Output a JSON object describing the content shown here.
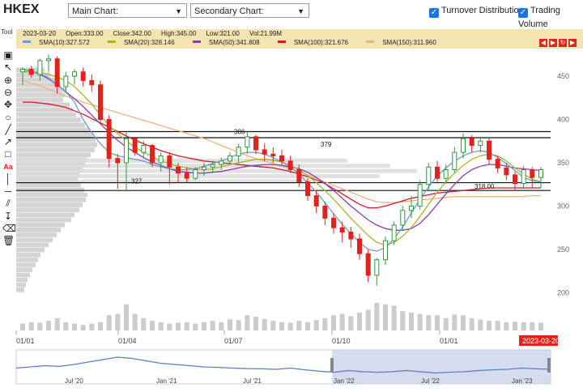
{
  "header": {
    "ticker": "HKEX",
    "main_chart_label": "Main Chart:",
    "secondary_chart_label": "Secondary Chart:",
    "turnover_distribution_label": "Turnover Distribution",
    "trading_volume_label": "Trading Volume",
    "turnover_distribution_checked": true,
    "trading_volume_checked": true
  },
  "toolbar": {
    "label": "Tool",
    "tools": [
      "select-icon",
      "pointer-icon",
      "zoom-in-icon",
      "zoom-out-icon",
      "hand-icon",
      "circle-icon",
      "line-icon",
      "ray-icon",
      "rectangle-icon",
      "text-icon",
      "vertical-line-icon",
      "horizontal-line-icon",
      "parallel-lines-icon",
      "fib-icon",
      "eraser-icon",
      "trash-icon"
    ],
    "text_tool_glyph": "Aa"
  },
  "infobar": {
    "date": "2023-03-20",
    "open": "Open:333.00",
    "close": "Close:342.00",
    "high": "High:345.00",
    "low": "Low:321.00",
    "vol": "Vol:21.99M",
    "sma10": "SMA(10):327.572",
    "sma20": "SMA(20):328.146",
    "sma50": "SMA(50):341.808",
    "sma100": "SMA(100):321.676",
    "sma150": "SMA(150):311.960",
    "nav_buttons": [
      "◀",
      "▶",
      "↻",
      "▶"
    ]
  },
  "colors": {
    "up": "#2e9a3e",
    "down": "#e2231a",
    "sma10": "#6d9bd1",
    "sma20": "#a5b52c",
    "sma50": "#8b3ea8",
    "sma100": "#d4172c",
    "sma150": "#f3b07e",
    "volume": "#cccccc",
    "navigator_line": "#5b7fc0"
  },
  "chart_data": {
    "type": "candlestick",
    "ylim": [
      190,
      480
    ],
    "yticks": [
      "200",
      "250",
      "300",
      "350",
      "400",
      "450"
    ],
    "xticks": [
      "01/01",
      "01/04",
      "01/07",
      "01/10",
      "01/01"
    ],
    "last_date_badge": "2023-03-20",
    "candles": [
      [
        455,
        460,
        440,
        458
      ],
      [
        458,
        462,
        448,
        452
      ],
      [
        452,
        470,
        445,
        468
      ],
      [
        468,
        475,
        455,
        470
      ],
      [
        470,
        473,
        430,
        438
      ],
      [
        438,
        455,
        430,
        450
      ],
      [
        450,
        458,
        440,
        455
      ],
      [
        455,
        460,
        438,
        445
      ],
      [
        445,
        452,
        432,
        440
      ],
      [
        440,
        445,
        395,
        400
      ],
      [
        400,
        405,
        345,
        355
      ],
      [
        355,
        360,
        320,
        350
      ],
      [
        350,
        385,
        318,
        378
      ],
      [
        378,
        380,
        358,
        362
      ],
      [
        362,
        375,
        355,
        370
      ],
      [
        370,
        372,
        345,
        350
      ],
      [
        350,
        362,
        340,
        358
      ],
      [
        358,
        362,
        325,
        345
      ],
      [
        345,
        350,
        327,
        338
      ],
      [
        338,
        345,
        327,
        332
      ],
      [
        332,
        345,
        330,
        342
      ],
      [
        342,
        350,
        335,
        345
      ],
      [
        345,
        352,
        338,
        348
      ],
      [
        348,
        356,
        342,
        352
      ],
      [
        352,
        362,
        348,
        358
      ],
      [
        358,
        372,
        350,
        368
      ],
      [
        368,
        386,
        360,
        380
      ],
      [
        380,
        382,
        360,
        365
      ],
      [
        365,
        372,
        352,
        360
      ],
      [
        360,
        368,
        350,
        358
      ],
      [
        358,
        365,
        348,
        352
      ],
      [
        352,
        358,
        338,
        342
      ],
      [
        342,
        348,
        322,
        328
      ],
      [
        328,
        332,
        306,
        312
      ],
      [
        312,
        318,
        292,
        300
      ],
      [
        300,
        305,
        278,
        286
      ],
      [
        286,
        292,
        268,
        275
      ],
      [
        275,
        282,
        258,
        270
      ],
      [
        270,
        276,
        252,
        262
      ],
      [
        262,
        268,
        238,
        245
      ],
      [
        245,
        250,
        212,
        220
      ],
      [
        220,
        240,
        208,
        238
      ],
      [
        238,
        265,
        232,
        260
      ],
      [
        260,
        282,
        255,
        278
      ],
      [
        278,
        300,
        272,
        295
      ],
      [
        295,
        312,
        286,
        300
      ],
      [
        300,
        330,
        296,
        325
      ],
      [
        325,
        350,
        318,
        345
      ],
      [
        345,
        352,
        328,
        332
      ],
      [
        332,
        348,
        326,
        342
      ],
      [
        342,
        368,
        338,
        362
      ],
      [
        362,
        384,
        355,
        378
      ],
      [
        378,
        382,
        362,
        370
      ],
      [
        370,
        380,
        362,
        375
      ],
      [
        375,
        378,
        348,
        354
      ],
      [
        354,
        358,
        338,
        344
      ],
      [
        344,
        350,
        330,
        336
      ],
      [
        336,
        340,
        318,
        326
      ],
      [
        326,
        346,
        320,
        342
      ],
      [
        342,
        345,
        321,
        333
      ],
      [
        333,
        345,
        321,
        342
      ]
    ],
    "sma10": [
      458,
      456,
      453,
      448,
      440,
      432,
      420,
      400,
      385,
      372,
      362,
      358,
      356,
      354,
      352,
      348,
      345,
      343,
      342,
      342,
      343,
      346,
      349,
      352,
      356,
      360,
      362,
      362,
      360,
      356,
      351,
      345,
      337,
      327,
      316,
      304,
      291,
      279,
      268,
      258,
      250,
      248,
      252,
      262,
      276,
      292,
      308,
      322,
      335,
      344,
      352,
      358,
      362,
      364,
      362,
      356,
      349,
      341,
      333,
      329,
      328
    ],
    "sma20": [
      455,
      455,
      454,
      452,
      449,
      445,
      438,
      428,
      418,
      405,
      393,
      384,
      375,
      368,
      362,
      357,
      352,
      349,
      346,
      344,
      343,
      342,
      343,
      345,
      348,
      350,
      352,
      354,
      354,
      353,
      351,
      347,
      342,
      335,
      327,
      318,
      308,
      297,
      286,
      276,
      266,
      258,
      255,
      258,
      265,
      275,
      288,
      302,
      316,
      328,
      338,
      347,
      354,
      358,
      360,
      358,
      352,
      344,
      337,
      331,
      328
    ],
    "sma50": [
      458,
      456,
      452,
      447,
      440,
      432,
      424,
      415,
      405,
      395,
      385,
      376,
      368,
      362,
      356,
      351,
      347,
      343,
      340,
      339,
      338,
      338,
      339,
      340,
      342,
      344,
      346,
      347,
      348,
      348,
      347,
      345,
      343,
      339,
      333,
      326,
      318,
      309,
      300,
      292,
      284,
      278,
      274,
      272,
      272,
      274,
      280,
      290,
      302,
      314,
      325,
      335,
      342,
      346,
      348,
      348,
      346,
      344,
      343,
      342,
      341
    ],
    "sma100": [
      420,
      420,
      419,
      418,
      416,
      414,
      410,
      406,
      401,
      396,
      391,
      386,
      381,
      376,
      372,
      368,
      364,
      361,
      358,
      356,
      354,
      352,
      351,
      350,
      349,
      348,
      347,
      346,
      345,
      344,
      342,
      340,
      337,
      334,
      330,
      326,
      320,
      314,
      308,
      302,
      298,
      298,
      300,
      303,
      306,
      309,
      311,
      313,
      315,
      316,
      317,
      318,
      319,
      320,
      321,
      321,
      321,
      321,
      321,
      321,
      321
    ],
    "sma150": [
      445,
      442,
      439,
      435,
      431,
      427,
      424,
      420,
      417,
      414,
      411,
      408,
      405,
      402,
      399,
      396,
      393,
      390,
      387,
      384,
      381,
      378,
      374,
      370,
      366,
      362,
      358,
      355,
      352,
      349,
      346,
      343,
      340,
      336,
      332,
      328,
      324,
      320,
      316,
      312,
      308,
      305,
      304,
      304,
      305,
      306,
      307,
      308,
      309,
      310,
      311,
      311,
      311,
      311,
      311,
      311,
      311,
      311,
      311,
      312,
      312
    ],
    "volume": [
      0.25,
      0.3,
      0.28,
      0.35,
      0.45,
      0.3,
      0.25,
      0.2,
      0.25,
      0.3,
      0.55,
      0.6,
      0.95,
      0.6,
      0.45,
      0.35,
      0.3,
      0.25,
      0.28,
      0.3,
      0.25,
      0.3,
      0.35,
      0.3,
      0.4,
      0.38,
      0.55,
      0.5,
      0.42,
      0.35,
      0.3,
      0.28,
      0.35,
      0.3,
      0.38,
      0.45,
      0.55,
      0.6,
      0.52,
      0.65,
      0.75,
      1.0,
      0.95,
      0.9,
      0.7,
      0.65,
      0.6,
      0.55,
      0.55,
      0.45,
      0.58,
      0.55,
      0.45,
      0.4,
      0.35,
      0.35,
      0.3,
      0.32,
      0.3,
      0.3,
      0.28
    ],
    "horizontal_lines": [
      {
        "value": 386,
        "label": ""
      },
      {
        "value": 379,
        "label": "379"
      },
      {
        "value": 327,
        "label": ""
      },
      {
        "value": 318,
        "label": "318.00"
      }
    ],
    "annotations": [
      {
        "text": "386",
        "value": 386
      },
      {
        "text": "327",
        "value": 327
      }
    ],
    "turnover_distribution": [
      0.35,
      0.42,
      0.5,
      0.55,
      0.62,
      0.6,
      0.58,
      0.66,
      0.7,
      0.74,
      0.8,
      0.85,
      0.9,
      0.95,
      0.98,
      1.0,
      0.97,
      0.92,
      0.88,
      0.85,
      0.82,
      0.78,
      0.76,
      0.8,
      0.84,
      0.88,
      0.86,
      0.82,
      0.78,
      0.72,
      0.68,
      0.6,
      0.55,
      0.5,
      0.45,
      0.4,
      0.35,
      0.3,
      0.27,
      0.24,
      0.2,
      0.17,
      0.14,
      0.12,
      0.1
    ],
    "turnover_profile_bars": [
      {
        "value": 352,
        "extent": 0.62
      },
      {
        "value": 346,
        "extent": 0.7
      },
      {
        "value": 340,
        "extent": 0.75
      },
      {
        "value": 334,
        "extent": 0.68
      },
      {
        "value": 328,
        "extent": 0.55
      }
    ],
    "navigator": {
      "xticks": [
        "Jul '20",
        "Jan '21",
        "Jul '21",
        "Jan '22",
        "Jul '22",
        "Jan '23"
      ],
      "values": [
        0.45,
        0.5,
        0.55,
        0.52,
        0.6,
        0.7,
        0.8,
        0.9,
        0.85,
        0.75,
        0.65,
        0.6,
        0.55,
        0.5,
        0.48,
        0.45,
        0.43,
        0.42,
        0.4,
        0.45,
        0.38,
        0.32,
        0.28,
        0.35,
        0.3,
        0.28,
        0.3,
        0.35,
        0.3,
        0.25,
        0.28,
        0.3,
        0.35,
        0.38,
        0.4,
        0.45,
        0.42,
        0.4
      ]
    }
  }
}
